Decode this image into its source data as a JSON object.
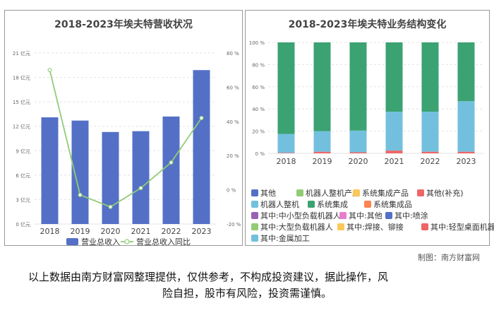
{
  "chart_data": [
    {
      "type": "bar",
      "title": "2018-2023年埃夫特营收状况",
      "categories": [
        "2018",
        "2019",
        "2020",
        "2021",
        "2022",
        "2023"
      ],
      "series": [
        {
          "name": "营业总收入",
          "axis": "left",
          "kind": "bar",
          "color": "#5470c6",
          "values": [
            13.1,
            12.7,
            11.3,
            11.4,
            13.2,
            18.9
          ]
        },
        {
          "name": "营业总收入同比",
          "axis": "right",
          "kind": "line",
          "color": "#91cc75",
          "values": [
            70,
            -3,
            -10,
            1,
            16,
            42
          ]
        }
      ],
      "left_axis": {
        "ylim": [
          0,
          21
        ],
        "ticks": [
          0,
          3,
          6,
          9,
          12,
          15,
          18,
          21
        ],
        "tick_labels": [
          "0 亿元",
          "3 亿元",
          "6 亿元",
          "9 亿元",
          "12 亿元",
          "15 亿元",
          "18 亿元",
          "21 亿元"
        ]
      },
      "right_axis": {
        "ylim": [
          -20,
          80
        ],
        "ticks": [
          -20,
          0,
          20,
          40,
          60,
          80
        ],
        "tick_labels": [
          "-20 %",
          "0 %",
          "20 %",
          "40 %",
          "60 %",
          "80 %"
        ]
      },
      "grid": true,
      "legend_position": "bottom"
    },
    {
      "type": "bar",
      "stacked": true,
      "title": "2018-2023年埃夫特业务结构变化",
      "categories": [
        "2018",
        "2019",
        "2020",
        "2021",
        "2022",
        "2023"
      ],
      "series": [
        {
          "name": "其他",
          "color": "#5470c6",
          "values": [
            0,
            0,
            0,
            0,
            0,
            0
          ]
        },
        {
          "name": "机器人整机产品",
          "color": "#91cc75",
          "values": [
            0,
            0,
            0,
            0,
            0,
            0
          ]
        },
        {
          "name": "系统集成产品",
          "color": "#fac858",
          "values": [
            0,
            0,
            0,
            0,
            0,
            0
          ]
        },
        {
          "name": "其他(补充)",
          "color": "#ee6666",
          "values": [
            0.5,
            1.5,
            1,
            2.5,
            1.5,
            1.5
          ]
        },
        {
          "name": "机器人整机",
          "color": "#73c0de",
          "values": [
            17,
            18.5,
            19.5,
            35,
            36,
            45.5
          ]
        },
        {
          "name": "系统集成",
          "color": "#3ba272",
          "values": [
            82.5,
            80,
            79.5,
            62.5,
            62.5,
            53
          ]
        },
        {
          "name": "系统集成品",
          "color": "#fc8452",
          "values": [
            0,
            0,
            0,
            0,
            0,
            0
          ]
        },
        {
          "name": "其中:中小型负载机器人",
          "color": "#9a60b4",
          "values": [
            0,
            0,
            0,
            0,
            0,
            0
          ]
        },
        {
          "name": "其中:其他",
          "color": "#ea7ccc",
          "values": [
            0,
            0,
            0,
            0,
            0,
            0
          ]
        },
        {
          "name": "其中:喷涂",
          "color": "#5470c6",
          "values": [
            0,
            0,
            0,
            0,
            0,
            0
          ]
        },
        {
          "name": "其中:大型负载机器人",
          "color": "#91cc75",
          "values": [
            0,
            0,
            0,
            0,
            0,
            0
          ]
        },
        {
          "name": "其中:焊接、铆接",
          "color": "#fac858",
          "values": [
            0,
            0,
            0,
            0,
            0,
            0
          ]
        },
        {
          "name": "其中:轻型桌面机器人",
          "color": "#ee6666",
          "values": [
            0,
            0,
            0,
            0,
            0,
            0
          ]
        },
        {
          "name": "其中:金属加工",
          "color": "#73c0de",
          "values": [
            0,
            0,
            0,
            0,
            0,
            0
          ]
        }
      ],
      "ylim": [
        0,
        100
      ],
      "ticks": [
        0,
        20,
        40,
        60,
        80,
        100
      ],
      "tick_labels": [
        "0 %",
        "20 %",
        "40 %",
        "60 %",
        "80 %",
        "100 %"
      ],
      "grid": true,
      "legend_position": "bottom"
    }
  ],
  "credit": "制图：南方财富网",
  "disclaimer": {
    "line1": "以上数据由南方财富网整理提供，仅供参考，不构成投资建议，据此操作，风",
    "line2": "险自担，股市有风险，投资需谨慎。"
  }
}
